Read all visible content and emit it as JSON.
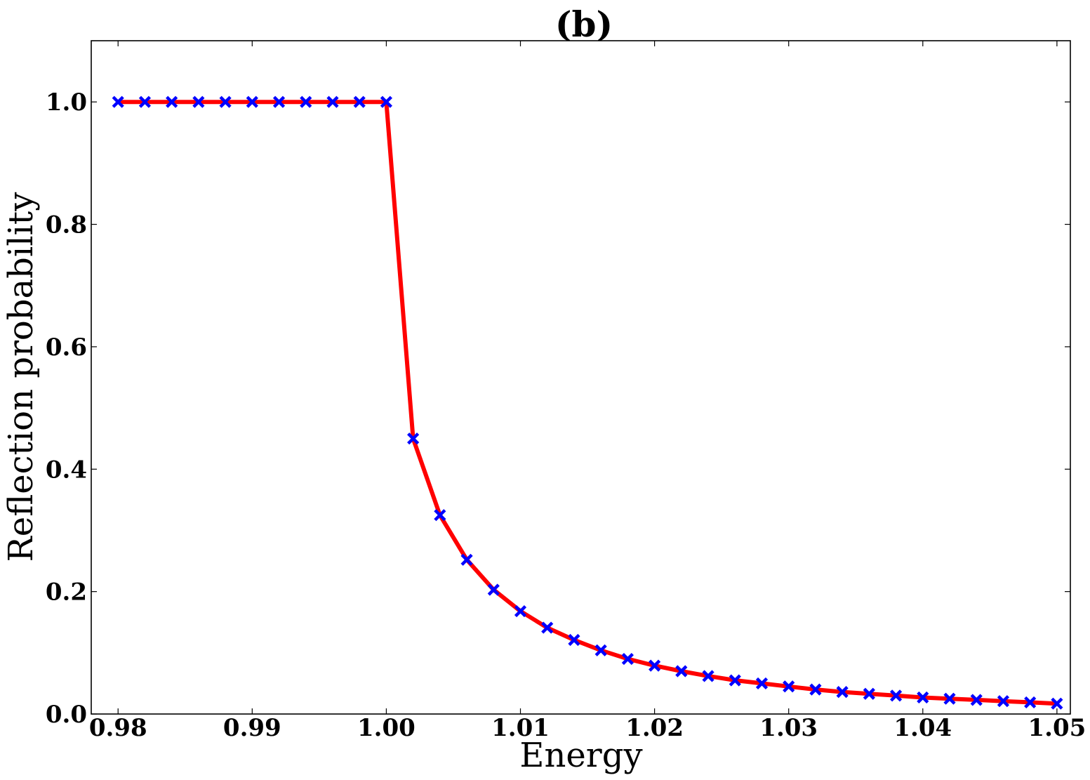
{
  "chart_data": {
    "type": "line",
    "title": "(b)",
    "xlabel": "Energy",
    "ylabel": "Reflection probability",
    "xlim": [
      0.978,
      1.051
    ],
    "ylim": [
      0.0,
      1.1
    ],
    "xticks": [
      0.98,
      0.99,
      1.0,
      1.01,
      1.02,
      1.03,
      1.04,
      1.05
    ],
    "xtick_labels": [
      "0.98",
      "0.99",
      "1.00",
      "1.01",
      "1.02",
      "1.03",
      "1.04",
      "1.05"
    ],
    "yticks": [
      0.0,
      0.2,
      0.4,
      0.6,
      0.8,
      1.0
    ],
    "ytick_labels": [
      "0.0",
      "0.2",
      "0.4",
      "0.6",
      "0.8",
      "1.0"
    ],
    "grid": false,
    "line_color": "#ff0000",
    "marker_color": "#0000ff",
    "marker": "x",
    "x": [
      0.98,
      0.982,
      0.984,
      0.986,
      0.988,
      0.99,
      0.992,
      0.994,
      0.996,
      0.998,
      1.0,
      1.002,
      1.004,
      1.006,
      1.008,
      1.01,
      1.012,
      1.014,
      1.016,
      1.018,
      1.02,
      1.022,
      1.024,
      1.026,
      1.028,
      1.03,
      1.032,
      1.034,
      1.036,
      1.038,
      1.04,
      1.042,
      1.044,
      1.046,
      1.048,
      1.05
    ],
    "y": [
      1.0,
      1.0,
      1.0,
      1.0,
      1.0,
      1.0,
      1.0,
      1.0,
      1.0,
      1.0,
      1.0,
      0.45,
      0.325,
      0.252,
      0.203,
      0.168,
      0.141,
      0.121,
      0.104,
      0.09,
      0.079,
      0.07,
      0.062,
      0.055,
      0.05,
      0.045,
      0.04,
      0.036,
      0.033,
      0.03,
      0.027,
      0.025,
      0.023,
      0.021,
      0.019,
      0.017
    ]
  }
}
